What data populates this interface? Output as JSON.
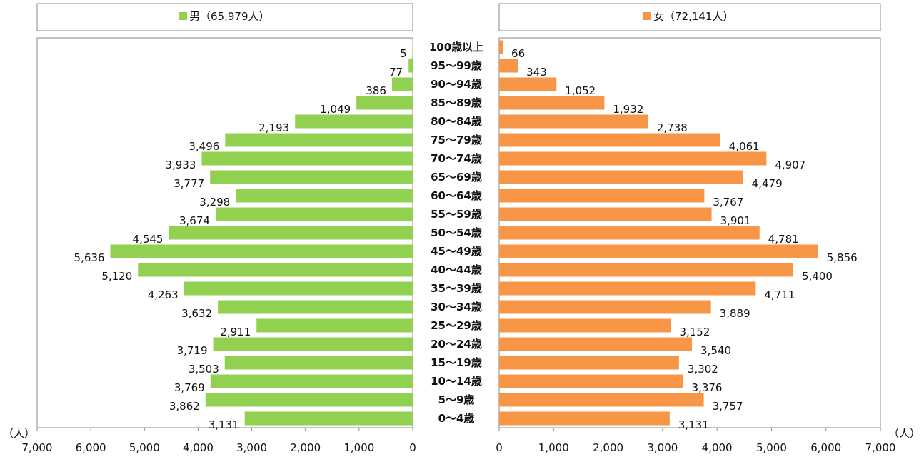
{
  "chart_data": {
    "type": "bar",
    "unit": "（人）",
    "categories": [
      "100歳以上",
      "95〜99歳",
      "90〜94歳",
      "85〜89歳",
      "80〜84歳",
      "75〜79歳",
      "70〜74歳",
      "65〜69歳",
      "60〜64歳",
      "55〜59歳",
      "50〜54歳",
      "45〜49歳",
      "40〜44歳",
      "35〜39歳",
      "30〜34歳",
      "25〜29歳",
      "20〜24歳",
      "15〜19歳",
      "10〜14歳",
      "5〜9歳",
      "0〜4歳"
    ],
    "series": [
      {
        "name": "男",
        "legend": "男（65,979人）",
        "color": "#92d050",
        "values": [
          5,
          77,
          386,
          1049,
          2193,
          3496,
          3933,
          3777,
          3298,
          3674,
          4545,
          5636,
          5120,
          4263,
          3632,
          2911,
          3719,
          3503,
          3769,
          3862,
          3131
        ],
        "labels": [
          "5",
          "77",
          "386",
          "1,049",
          "2,193",
          "3,496",
          "3,933",
          "3,777",
          "3,298",
          "3,674",
          "4,545",
          "5,636",
          "5,120",
          "4,263",
          "3,632",
          "2,911",
          "3,719",
          "3,503",
          "3,769",
          "3,862",
          "3,131"
        ]
      },
      {
        "name": "女",
        "legend": "女（72,141人）",
        "color": "#f79646",
        "values": [
          66,
          343,
          1052,
          1932,
          2738,
          4061,
          4907,
          4479,
          3767,
          3901,
          4781,
          5856,
          5400,
          4711,
          3889,
          3152,
          3540,
          3302,
          3376,
          3757,
          3131
        ],
        "labels": [
          "66",
          "343",
          "1,052",
          "1,932",
          "2,738",
          "4,061",
          "4,907",
          "4,479",
          "3,767",
          "3,901",
          "4,781",
          "5,856",
          "5,400",
          "4,711",
          "3,889",
          "3,152",
          "3,540",
          "3,302",
          "3,376",
          "3,757",
          "3,131"
        ]
      }
    ],
    "xlim": [
      0,
      7000
    ],
    "xticks": [
      0,
      1000,
      2000,
      3000,
      4000,
      5000,
      6000,
      7000
    ],
    "xtick_labels": [
      "0",
      "1,000",
      "2,000",
      "3,000",
      "4,000",
      "5,000",
      "6,000",
      "7,000"
    ],
    "grid": false,
    "legend_placement": "top"
  }
}
